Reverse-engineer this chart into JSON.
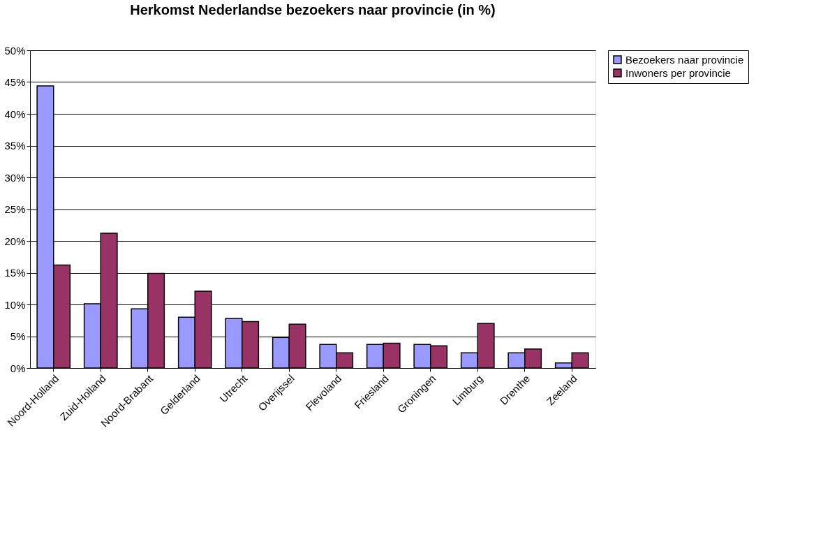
{
  "chart_data": {
    "type": "bar",
    "title": "Herkomst Nederlandse bezoekers naar provincie (in %)",
    "categories": [
      "Noord-Holland",
      "Zuid-Holland",
      "Noord-Brabant",
      "Gelderland",
      "Utrecht",
      "Overijssel",
      "Flevoland",
      "Friesland",
      "Groningen",
      "Limburg",
      "Drenthe",
      "Zeeland"
    ],
    "series": [
      {
        "name": "Bezoekers naar provincie",
        "color": "#9999ff",
        "values": [
          44.4,
          10.1,
          9.3,
          8.0,
          7.8,
          4.8,
          3.7,
          3.7,
          3.7,
          2.4,
          2.4,
          0.8
        ]
      },
      {
        "name": "Inwoners per provincie",
        "color": "#993366",
        "values": [
          16.2,
          21.2,
          14.9,
          12.1,
          7.3,
          6.9,
          2.4,
          3.9,
          3.5,
          7.0,
          3.0,
          2.4
        ]
      }
    ],
    "ylim": [
      0,
      50
    ],
    "yticks": [
      {
        "value": 0,
        "label": "0%"
      },
      {
        "value": 5,
        "label": "5%"
      },
      {
        "value": 10,
        "label": "10%"
      },
      {
        "value": 15,
        "label": "15%"
      },
      {
        "value": 20,
        "label": "20%"
      },
      {
        "value": 25,
        "label": "25%"
      },
      {
        "value": 30,
        "label": "30%"
      },
      {
        "value": 35,
        "label": "35%"
      },
      {
        "value": 40,
        "label": "40%"
      },
      {
        "value": 45,
        "label": "45%"
      },
      {
        "value": 50,
        "label": "50%"
      }
    ],
    "grid": "y",
    "legend": "right"
  }
}
